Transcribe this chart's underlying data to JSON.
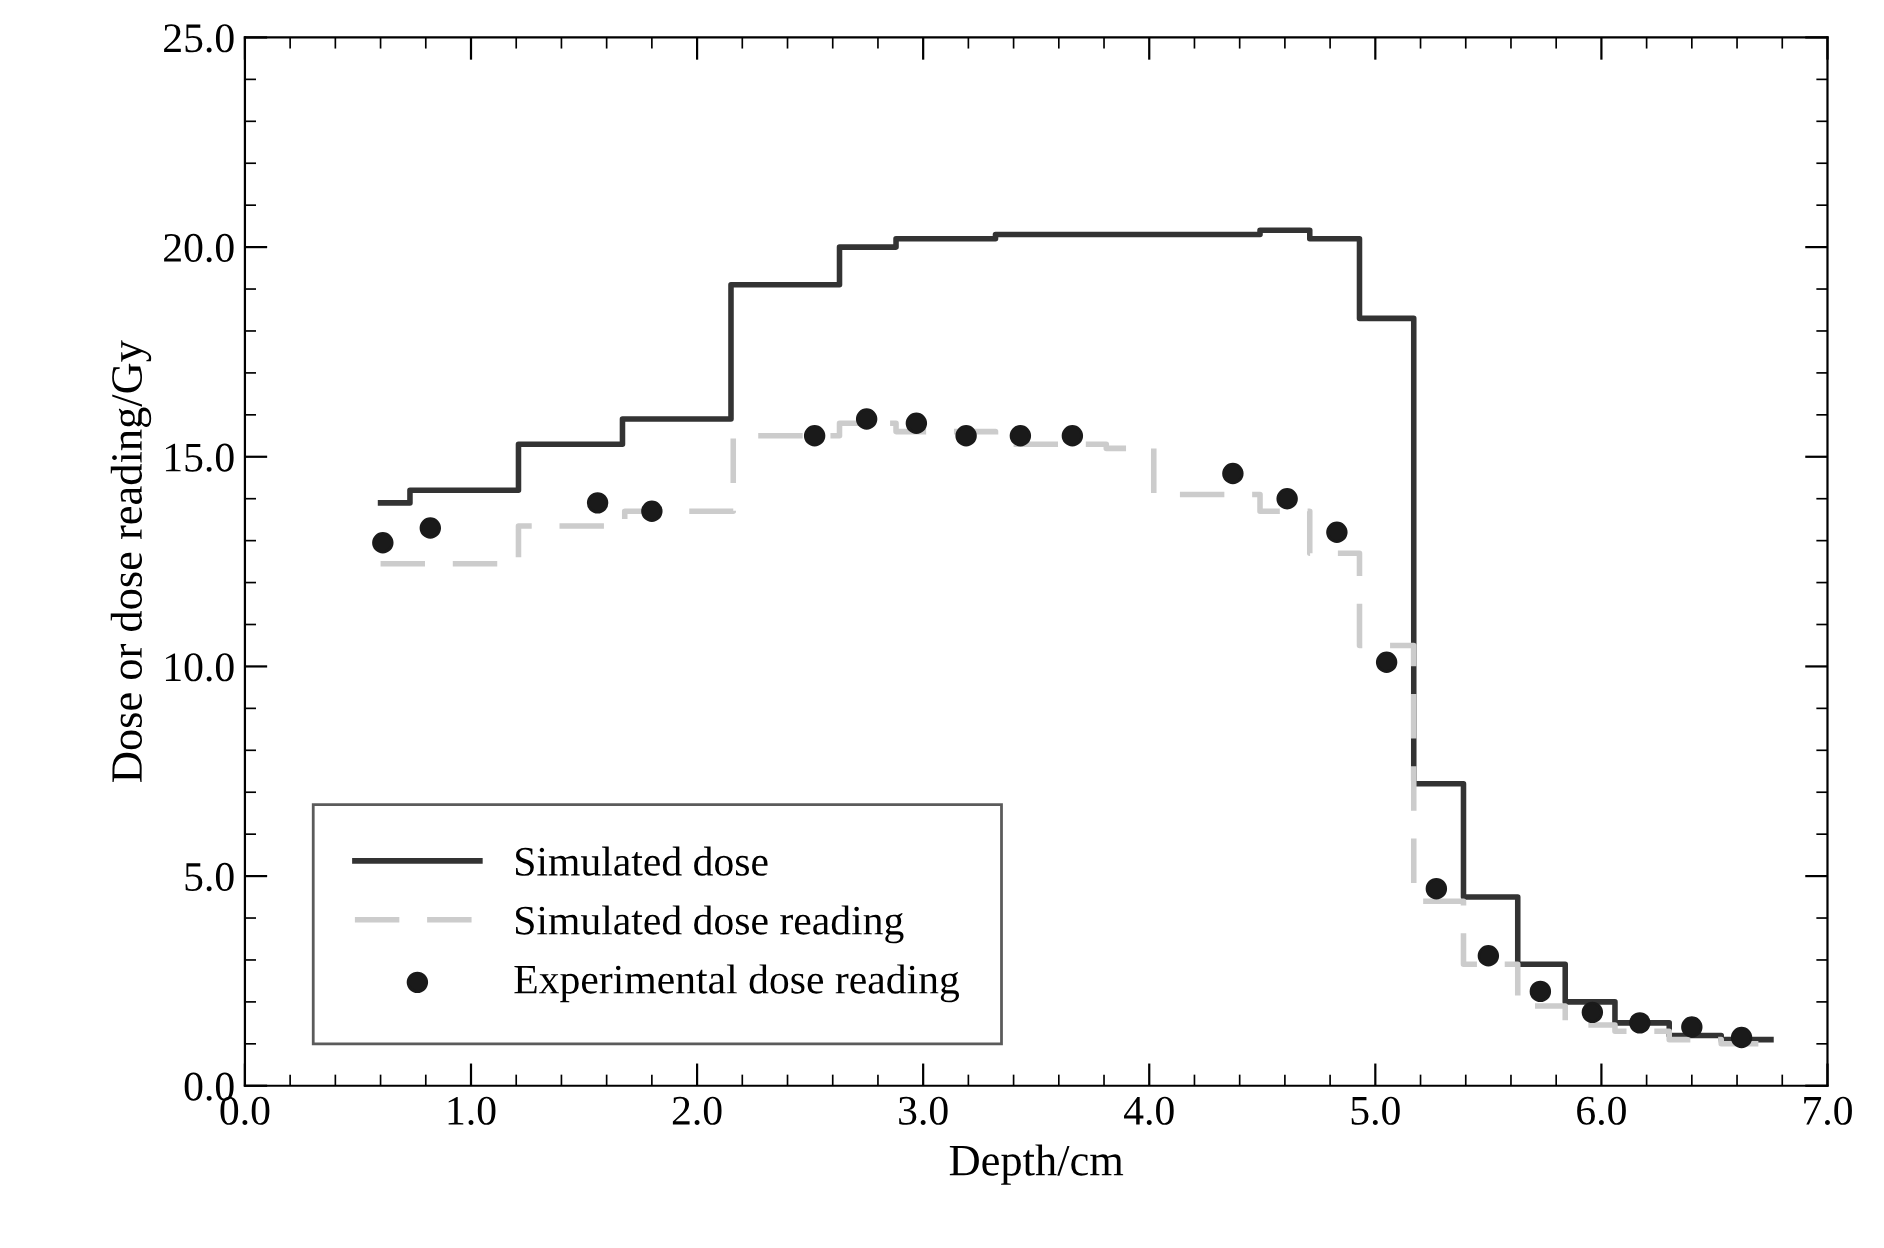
{
  "chart_data": {
    "type": "step",
    "xlabel": "Depth/cm",
    "ylabel": "Dose or dose reading/Gy",
    "xlim": [
      0,
      7
    ],
    "ylim": [
      0,
      25
    ],
    "xticks": [
      {
        "value": 0,
        "label": "0.0"
      },
      {
        "value": 1,
        "label": "1.0"
      },
      {
        "value": 2,
        "label": "2.0"
      },
      {
        "value": 3,
        "label": "3.0"
      },
      {
        "value": 4,
        "label": "4.0"
      },
      {
        "value": 5,
        "label": "5.0"
      },
      {
        "value": 6,
        "label": "6.0"
      },
      {
        "value": 7,
        "label": "7.0"
      }
    ],
    "yticks": [
      {
        "value": 0,
        "label": "0.0"
      },
      {
        "value": 5,
        "label": "5.0"
      },
      {
        "value": 10,
        "label": "10.0"
      },
      {
        "value": 15,
        "label": "15.0"
      },
      {
        "value": 20,
        "label": "20.0"
      },
      {
        "value": 25,
        "label": "25.0"
      }
    ],
    "grid": false,
    "legend": "bottom left",
    "series": [
      {
        "name": "Simulated dose",
        "color": "#333333",
        "line_style": "solid",
        "x": [
          0.6,
          0.73,
          1.21,
          1.67,
          2.15,
          2.63,
          2.88,
          3.32,
          4.49,
          4.71,
          4.93,
          5.17,
          5.39,
          5.63,
          5.84,
          6.06,
          6.3,
          6.53,
          6.75
        ],
        "values": [
          13.9,
          14.2,
          15.3,
          15.9,
          19.1,
          20.0,
          20.2,
          20.3,
          20.4,
          20.2,
          18.3,
          7.2,
          4.5,
          2.9,
          2.0,
          1.5,
          1.2,
          1.1,
          1.1
        ]
      },
      {
        "name": "Simulated dose reading",
        "color": "#cccccc",
        "line_style": "dashed",
        "x": [
          0.6,
          1.21,
          1.68,
          2.16,
          2.63,
          2.88,
          3.32,
          3.81,
          4.02,
          4.49,
          4.71,
          4.93,
          5.17,
          5.39,
          5.63,
          5.84,
          6.06,
          6.3,
          6.53,
          6.75
        ],
        "values": [
          12.45,
          13.35,
          13.7,
          15.5,
          15.8,
          15.6,
          15.3,
          15.2,
          14.1,
          13.7,
          12.7,
          10.5,
          4.4,
          2.9,
          1.9,
          1.45,
          1.3,
          1.1,
          1.0,
          1.0
        ]
      },
      {
        "name": "Experimental dose reading",
        "type": "scatter",
        "color": "#1a1a1a",
        "marker": "circle",
        "x": [
          0.61,
          0.82,
          1.56,
          1.8,
          2.52,
          2.75,
          2.97,
          3.19,
          3.43,
          3.66,
          4.37,
          4.61,
          4.83,
          5.05,
          5.27,
          5.5,
          5.73,
          5.96,
          6.17,
          6.4,
          6.62
        ],
        "values": [
          12.95,
          13.3,
          13.9,
          13.7,
          15.5,
          15.9,
          15.8,
          15.5,
          15.5,
          15.5,
          14.6,
          14.0,
          13.2,
          10.1,
          4.7,
          3.1,
          2.25,
          1.75,
          1.5,
          1.4,
          1.15
        ]
      }
    ]
  }
}
